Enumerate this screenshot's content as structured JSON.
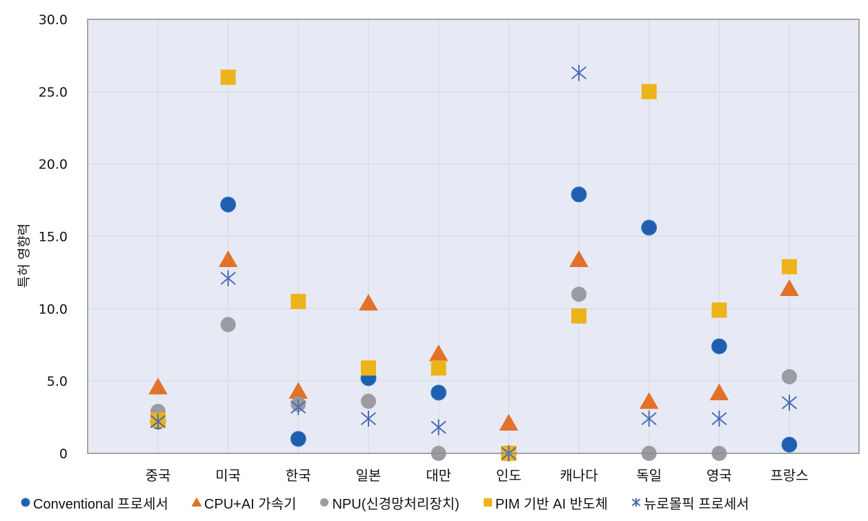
{
  "chart_data": {
    "type": "scatter",
    "title": "",
    "xlabel": "",
    "ylabel": "특허 영향력",
    "ylim": [
      0,
      30
    ],
    "yticks": [
      "0",
      "5.0",
      "10.0",
      "15.0",
      "20.0",
      "25.0",
      "30.0"
    ],
    "grid": true,
    "legend_position": "bottom",
    "categories": [
      "중국",
      "미국",
      "한국",
      "일본",
      "대만",
      "인도",
      "캐나다",
      "독일",
      "영국",
      "프랑스"
    ],
    "series": [
      {
        "name": "Conventional 프로세서",
        "marker": "circle",
        "color": "#1f5fad",
        "values": [
          2.2,
          17.2,
          1.0,
          5.2,
          4.2,
          0.0,
          17.9,
          15.6,
          7.4,
          0.6
        ]
      },
      {
        "name": "CPU+AI 가속기",
        "marker": "triangle",
        "color": "#e2712a",
        "values": [
          4.6,
          13.4,
          4.3,
          10.4,
          6.9,
          2.1,
          13.4,
          3.6,
          4.2,
          11.4
        ]
      },
      {
        "name": "NPU(신경망처리장치)",
        "marker": "circle",
        "color": "#9b9ca1",
        "values": [
          2.9,
          8.9,
          3.4,
          3.6,
          0.0,
          0.0,
          11.0,
          0.0,
          0.0,
          5.3
        ]
      },
      {
        "name": "PIM 기반 AI 반도체",
        "marker": "square",
        "color": "#edb41a",
        "values": [
          2.3,
          26.0,
          10.5,
          5.9,
          5.9,
          0.0,
          9.5,
          25.0,
          9.9,
          12.9
        ]
      },
      {
        "name": "뉴로몰픽 프로세서",
        "marker": "star",
        "color": "#4a6bb5",
        "values": [
          2.2,
          12.1,
          3.2,
          2.4,
          1.8,
          0.0,
          26.3,
          2.4,
          2.4,
          3.5
        ]
      }
    ]
  },
  "colors": {
    "plot_background": "#e7eaf4",
    "grid": "#d6dae6",
    "axis": "#8a8a8a"
  }
}
